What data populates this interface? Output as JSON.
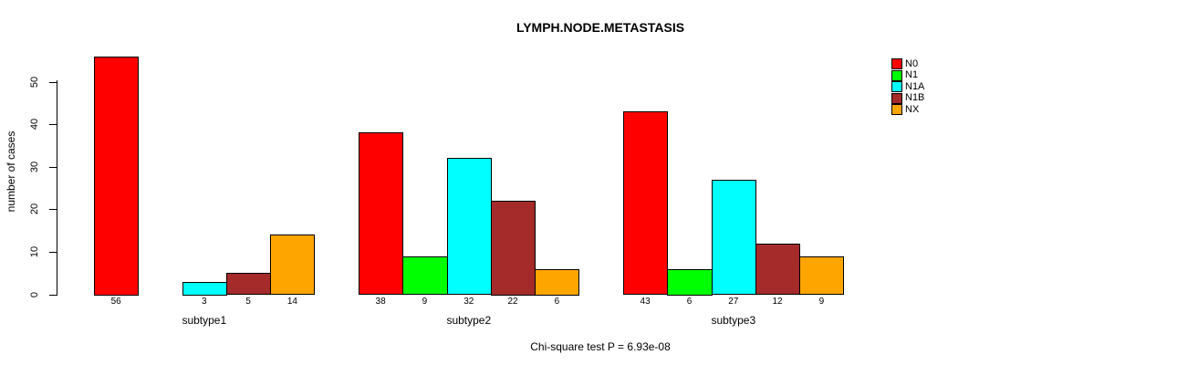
{
  "chart_data": {
    "type": "bar",
    "title": "LYMPH.NODE.METASTASIS",
    "xlabel": "",
    "ylabel": "number of cases",
    "ylim": [
      0,
      56
    ],
    "yticks": [
      0,
      10,
      20,
      30,
      40,
      50
    ],
    "grid": false,
    "bar_border_color": "#000000",
    "legend_position": "top-right",
    "categories": [
      "subtype1",
      "subtype2",
      "subtype3"
    ],
    "series": [
      {
        "name": "N0",
        "color": "#FF0000",
        "values": [
          56,
          38,
          43
        ]
      },
      {
        "name": "N1",
        "color": "#00FF00",
        "values": [
          0,
          9,
          6
        ]
      },
      {
        "name": "N1A",
        "color": "#00FFFF",
        "values": [
          3,
          32,
          27
        ]
      },
      {
        "name": "N1B",
        "color": "#A52A2A",
        "values": [
          5,
          22,
          12
        ]
      },
      {
        "name": "NX",
        "color": "#FFA500",
        "values": [
          14,
          6,
          9
        ]
      }
    ],
    "bar_value_labels": [
      [
        "56",
        "",
        "3",
        "5",
        "14"
      ],
      [
        "38",
        "9",
        "32",
        "22",
        "6"
      ],
      [
        "43",
        "6",
        "27",
        "12",
        "9"
      ]
    ],
    "annotation": "Chi-square test P = 6.93e-08"
  }
}
